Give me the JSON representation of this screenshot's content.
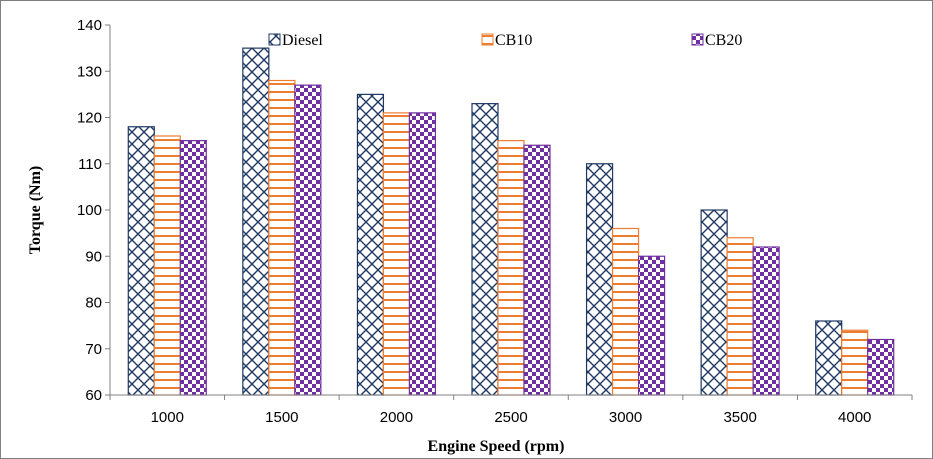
{
  "chart_data": {
    "type": "bar",
    "title": "",
    "xlabel": "Engine Speed (rpm)",
    "ylabel": "Torque (Nm)",
    "categories": [
      "1000",
      "1500",
      "2000",
      "2500",
      "3000",
      "3500",
      "4000"
    ],
    "ylim": [
      60,
      140
    ],
    "yticks": [
      60,
      70,
      80,
      90,
      100,
      110,
      120,
      130,
      140
    ],
    "grid": false,
    "legend_position": "top",
    "series": [
      {
        "name": "Diesel",
        "values": [
          118,
          135,
          125,
          123,
          110,
          100,
          76
        ],
        "color": "#1f3864",
        "pattern": "diagonal-cross"
      },
      {
        "name": "CB10",
        "values": [
          116,
          128,
          121,
          115,
          96,
          94,
          74
        ],
        "color": "#ed7d31",
        "pattern": "horizontal-lines"
      },
      {
        "name": "CB20",
        "values": [
          115,
          127,
          121,
          114,
          90,
          92,
          72
        ],
        "color": "#7030a0",
        "pattern": "checkerboard"
      }
    ]
  }
}
